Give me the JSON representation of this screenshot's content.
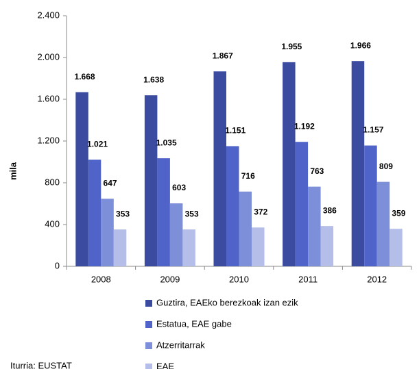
{
  "chart_data": {
    "type": "bar",
    "y_label": "mila",
    "source": "Iturria: EUSTAT",
    "categories": [
      "2008",
      "2009",
      "2010",
      "2011",
      "2012"
    ],
    "series": [
      {
        "name": "Guztira, EAEko berezkoak izan ezik",
        "color": "#3a4ba0",
        "values": [
          1668,
          1638,
          1867,
          1955,
          1966
        ],
        "value_labels": [
          "1.668",
          "1.638",
          "1.867",
          "1.955",
          "1.966"
        ]
      },
      {
        "name": "Estatua, EAE gabe",
        "color": "#4f63c8",
        "values": [
          1021,
          1035,
          1151,
          1192,
          1157
        ],
        "value_labels": [
          "1.021",
          "1.035",
          "1.151",
          "1.192",
          "1.157"
        ]
      },
      {
        "name": "Atzerritarrak",
        "color": "#7d8fd8",
        "values": [
          647,
          603,
          716,
          763,
          809
        ]
      },
      {
        "name": "EAE",
        "color": "#b4bee9",
        "values": [
          353,
          353,
          372,
          386,
          359
        ]
      }
    ],
    "ylim": [
      0,
      2400
    ],
    "yticks": [
      0,
      400,
      800,
      {
        "value": 1200,
        "label": "1.200"
      },
      {
        "value": 1600,
        "label": "1.600"
      },
      {
        "value": 2000,
        "label": "2.000"
      },
      {
        "value": 2400,
        "label": "2.400"
      }
    ],
    "grid": false
  }
}
